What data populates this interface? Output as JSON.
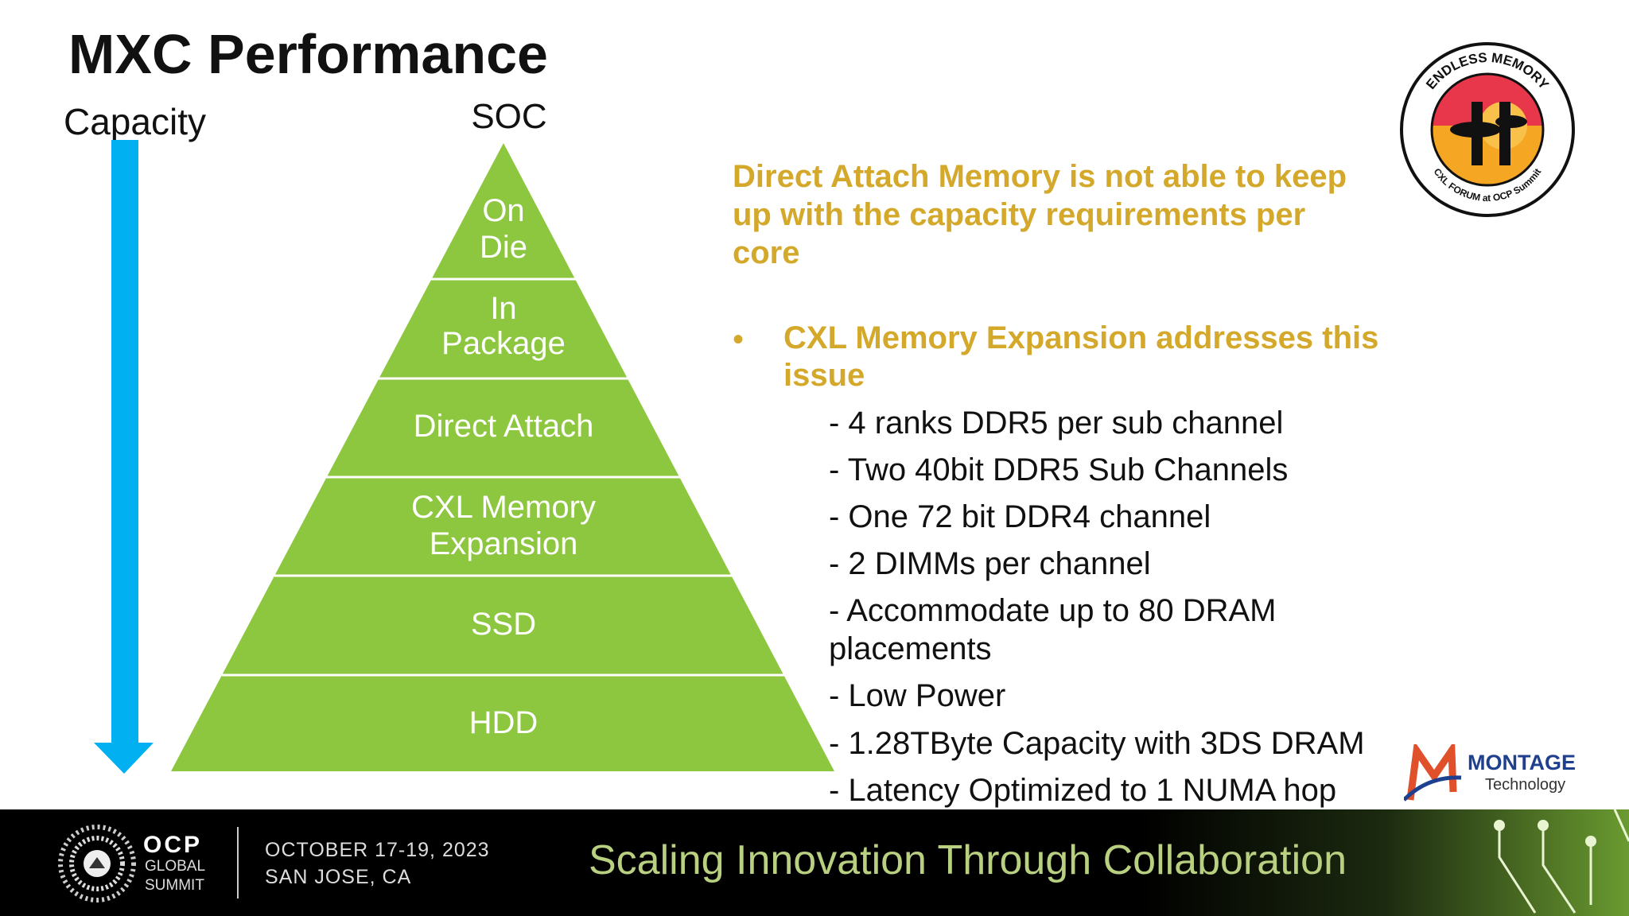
{
  "slide": {
    "title": "MXC Performance",
    "axis_label": "Capacity",
    "apex_label": "SOC",
    "pyramid_tiers": [
      {
        "line1": "On",
        "line2": "Die"
      },
      {
        "line1": "In",
        "line2": "Package"
      },
      {
        "line1": "Direct Attach",
        "line2": ""
      },
      {
        "line1": "CXL Memory",
        "line2": "Expansion"
      },
      {
        "line1": "SSD",
        "line2": ""
      },
      {
        "line1": "HDD",
        "line2": ""
      }
    ],
    "headline": "Direct Attach Memory is not able to keep up with the capacity requirements per core",
    "bullet": "CXL Memory Expansion addresses this issue",
    "sub_items": [
      "- 4 ranks DDR5 per sub channel",
      "- Two 40bit DDR5 Sub Channels",
      "- One 72 bit DDR4 channel",
      "- 2 DIMMs per channel",
      "- Accommodate up to 80 DRAM placements",
      "- Low Power",
      "- 1.28TByte Capacity with 3DS DRAM",
      "- Latency Optimized to 1 NUMA hop"
    ],
    "colors": {
      "pyramid": "#8dc63f",
      "arrow": "#00b0f0",
      "headline": "#d4a82a"
    }
  },
  "logos": {
    "badge_top": "ENDLESS MEMORY",
    "badge_bottom": "CXL FORUM at OCP Summit",
    "montage_name": "MONTAGE",
    "montage_sub": "Technology"
  },
  "footer": {
    "org": "OCP",
    "org_line2": "GLOBAL",
    "org_line3": "SUMMIT",
    "date": "OCTOBER 17-19, 2023",
    "location": "SAN JOSE, CA",
    "tagline": "Scaling Innovation Through Collaboration"
  }
}
